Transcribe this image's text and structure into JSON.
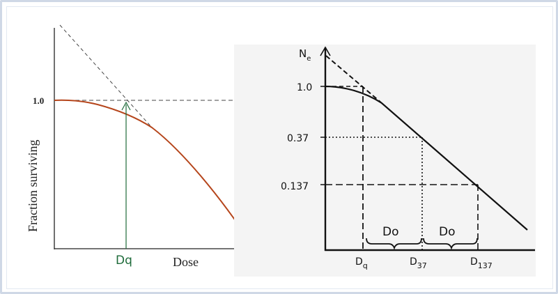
{
  "left_panel": {
    "y_axis_label": "Fraction surviving",
    "y_tick": "1.0",
    "x_axis_label": "Dose",
    "dq_label": "Dq",
    "colors": {
      "curve": "#b5451b",
      "arrow": "#1e6b3a",
      "axes": "#222222"
    }
  },
  "right_panel": {
    "y_axis_top": "N",
    "y_axis_top_sub": "e",
    "y_ticks": [
      "1.0",
      "0.37",
      "0.137"
    ],
    "x_ticks": [
      {
        "main": "D",
        "sub": "q"
      },
      {
        "main": "D",
        "sub": "37"
      },
      {
        "main": "D",
        "sub": "137"
      }
    ],
    "brace_labels": [
      "Do",
      "Do"
    ],
    "colors": {
      "lines": "#111111",
      "background": "#f4f4f4"
    }
  }
}
